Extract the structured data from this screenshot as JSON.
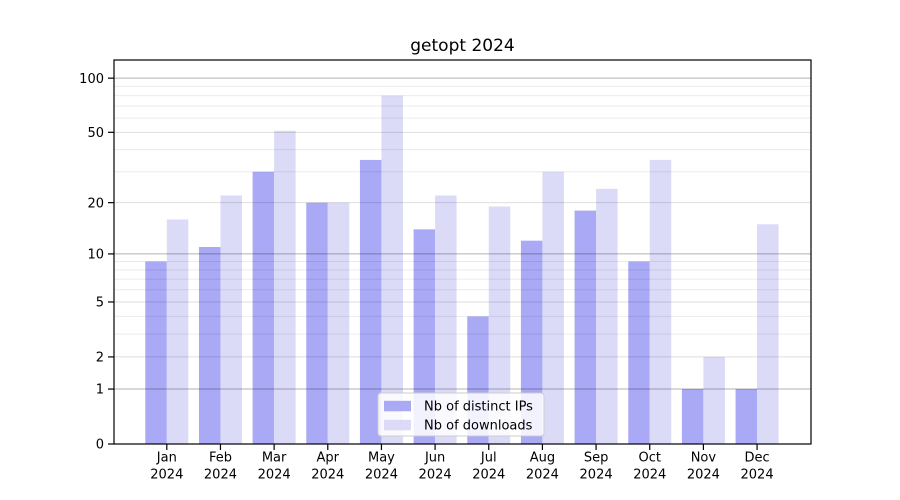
{
  "title": "getopt 2024",
  "legend": {
    "items": [
      {
        "label": "Nb of distinct IPs",
        "color_key": "ips"
      },
      {
        "label": "Nb of downloads",
        "color_key": "downloads"
      }
    ]
  },
  "colors": {
    "ips": "#a9a9f5",
    "downloads": "#dbdbf8",
    "axis": "#000000",
    "grid_major": "rgba(0,0,0,0.30)",
    "grid_labeled": "rgba(0,0,0,0.13)",
    "grid_minor": "rgba(0,0,0,0.08)",
    "legend_border": "#cccccc",
    "legend_bg": "rgba(255,255,255,0.85)"
  },
  "chart_data": {
    "type": "bar",
    "title": "getopt 2024",
    "categories": [
      "Jan 2024",
      "Feb 2024",
      "Mar 2024",
      "Apr 2024",
      "May 2024",
      "Jun 2024",
      "Jul 2024",
      "Aug 2024",
      "Sep 2024",
      "Oct 2024",
      "Nov 2024",
      "Dec 2024"
    ],
    "series": [
      {
        "name": "Nb of distinct IPs",
        "color_key": "ips",
        "values": [
          9,
          11,
          30,
          20,
          35,
          14,
          4,
          12,
          18,
          9,
          1,
          1
        ]
      },
      {
        "name": "Nb of downloads",
        "color_key": "downloads",
        "values": [
          16,
          22,
          51,
          20,
          80,
          22,
          19,
          30,
          24,
          35,
          2,
          15
        ]
      }
    ],
    "xlabel": "",
    "ylabel": "",
    "y_scale": "log10(value+1)",
    "y_ticks": [
      0,
      1,
      2,
      5,
      10,
      20,
      50,
      100
    ],
    "y_major_gridlines": [
      1,
      10,
      100
    ],
    "y_labeled_gridlines": [
      2,
      5,
      20,
      50
    ],
    "y_minor_gridlines": [
      3,
      4,
      6,
      7,
      8,
      9,
      30,
      40,
      60,
      70,
      80,
      90
    ],
    "y_max": 126,
    "ylim": [
      0,
      126
    ],
    "grid": true,
    "legend_position": "lower center"
  }
}
